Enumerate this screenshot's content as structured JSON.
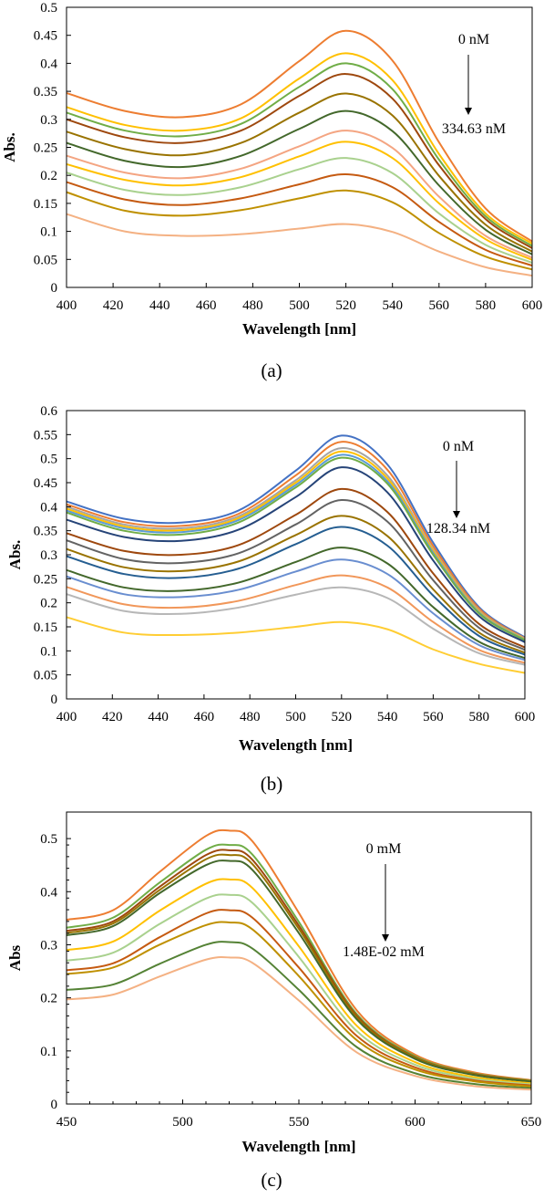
{
  "chart_data": [
    {
      "type": "line",
      "panel_label": "(a)",
      "xlabel": "Wavelength [nm]",
      "ylabel": "Abs.",
      "xlim": [
        400,
        600
      ],
      "ylim": [
        0,
        0.5
      ],
      "x_ticks": [
        "400",
        "420",
        "440",
        "460",
        "480",
        "500",
        "520",
        "540",
        "560",
        "580",
        "600"
      ],
      "y_ticks": [
        "0",
        "0.05",
        "0.1",
        "0.15",
        "0.2",
        "0.25",
        "0.3",
        "0.35",
        "0.4",
        "0.45",
        "0.5"
      ],
      "grid": false,
      "annotation": {
        "top": "0 nM",
        "bottom": "334.63 nM",
        "arrow": "down"
      },
      "x": [
        400,
        425,
        450,
        475,
        500,
        520,
        540,
        560,
        580,
        600
      ],
      "series": [
        {
          "color": "#ED7D31",
          "values": [
            0.347,
            0.315,
            0.304,
            0.327,
            0.404,
            0.458,
            0.405,
            0.259,
            0.141,
            0.082
          ]
        },
        {
          "color": "#FFC000",
          "values": [
            0.322,
            0.29,
            0.28,
            0.302,
            0.373,
            0.418,
            0.37,
            0.238,
            0.132,
            0.078
          ]
        },
        {
          "color": "#70AD47",
          "values": [
            0.312,
            0.28,
            0.27,
            0.292,
            0.358,
            0.4,
            0.354,
            0.228,
            0.127,
            0.074
          ]
        },
        {
          "color": "#9E480E",
          "values": [
            0.3,
            0.268,
            0.258,
            0.28,
            0.342,
            0.381,
            0.337,
            0.218,
            0.122,
            0.07
          ]
        },
        {
          "color": "#997300",
          "values": [
            0.278,
            0.247,
            0.236,
            0.258,
            0.312,
            0.346,
            0.307,
            0.199,
            0.112,
            0.064
          ]
        },
        {
          "color": "#43682B",
          "values": [
            0.258,
            0.226,
            0.215,
            0.235,
            0.283,
            0.315,
            0.279,
            0.182,
            0.103,
            0.059
          ]
        },
        {
          "color": "#F4A582",
          "values": [
            0.235,
            0.205,
            0.195,
            0.212,
            0.252,
            0.28,
            0.249,
            0.162,
            0.092,
            0.053
          ]
        },
        {
          "color": "#FFC000",
          "values": [
            0.22,
            0.192,
            0.182,
            0.197,
            0.234,
            0.26,
            0.231,
            0.15,
            0.086,
            0.049
          ]
        },
        {
          "color": "#A9D18E",
          "values": [
            0.205,
            0.174,
            0.165,
            0.179,
            0.211,
            0.231,
            0.204,
            0.132,
            0.076,
            0.044
          ]
        },
        {
          "color": "#C55A11",
          "values": [
            0.188,
            0.157,
            0.147,
            0.159,
            0.184,
            0.202,
            0.179,
            0.117,
            0.067,
            0.039
          ]
        },
        {
          "color": "#BF9000",
          "values": [
            0.17,
            0.137,
            0.128,
            0.138,
            0.159,
            0.173,
            0.152,
            0.097,
            0.055,
            0.032
          ]
        },
        {
          "color": "#F4B183",
          "values": [
            0.131,
            0.1,
            0.092,
            0.095,
            0.105,
            0.113,
            0.099,
            0.064,
            0.036,
            0.021
          ]
        }
      ]
    },
    {
      "type": "line",
      "panel_label": "(b)",
      "xlabel": "Wavelength [nm]",
      "ylabel": "Abs.",
      "xlim": [
        400,
        600
      ],
      "ylim": [
        0,
        0.6
      ],
      "x_ticks": [
        "400",
        "420",
        "440",
        "460",
        "480",
        "500",
        "520",
        "540",
        "560",
        "580",
        "600"
      ],
      "y_ticks": [
        "0",
        "0.05",
        "0.1",
        "0.15",
        "0.2",
        "0.25",
        "0.3",
        "0.35",
        "0.4",
        "0.45",
        "0.5",
        "0.55",
        "0.6"
      ],
      "grid": false,
      "annotation": {
        "top": "0 nM",
        "bottom": "128.34 nM",
        "arrow": "down"
      },
      "x": [
        400,
        425,
        450,
        475,
        500,
        520,
        540,
        560,
        580,
        600
      ],
      "series": [
        {
          "color": "#4472C4",
          "values": [
            0.411,
            0.375,
            0.367,
            0.392,
            0.475,
            0.548,
            0.488,
            0.325,
            0.191,
            0.128
          ]
        },
        {
          "color": "#ED7D31",
          "values": [
            0.405,
            0.368,
            0.36,
            0.385,
            0.465,
            0.535,
            0.477,
            0.318,
            0.188,
            0.126
          ]
        },
        {
          "color": "#A5A5A5",
          "values": [
            0.4,
            0.363,
            0.355,
            0.38,
            0.455,
            0.522,
            0.465,
            0.311,
            0.184,
            0.125
          ]
        },
        {
          "color": "#FFC000",
          "values": [
            0.396,
            0.359,
            0.351,
            0.376,
            0.45,
            0.515,
            0.459,
            0.308,
            0.182,
            0.124
          ]
        },
        {
          "color": "#5B9BD5",
          "values": [
            0.392,
            0.355,
            0.347,
            0.372,
            0.445,
            0.508,
            0.453,
            0.304,
            0.18,
            0.123
          ]
        },
        {
          "color": "#70AD47",
          "values": [
            0.388,
            0.35,
            0.342,
            0.367,
            0.44,
            0.502,
            0.448,
            0.3,
            0.178,
            0.122
          ]
        },
        {
          "color": "#264478",
          "values": [
            0.373,
            0.337,
            0.329,
            0.352,
            0.42,
            0.482,
            0.43,
            0.288,
            0.172,
            0.118
          ]
        },
        {
          "color": "#9E480E",
          "values": [
            0.345,
            0.308,
            0.3,
            0.32,
            0.383,
            0.437,
            0.389,
            0.261,
            0.156,
            0.107
          ]
        },
        {
          "color": "#636363",
          "values": [
            0.33,
            0.291,
            0.283,
            0.303,
            0.363,
            0.414,
            0.369,
            0.247,
            0.148,
            0.102
          ]
        },
        {
          "color": "#997300",
          "values": [
            0.312,
            0.274,
            0.266,
            0.286,
            0.341,
            0.381,
            0.339,
            0.228,
            0.138,
            0.096
          ]
        },
        {
          "color": "#255E91",
          "values": [
            0.297,
            0.26,
            0.252,
            0.271,
            0.322,
            0.358,
            0.319,
            0.215,
            0.131,
            0.092
          ]
        },
        {
          "color": "#43682B",
          "values": [
            0.268,
            0.232,
            0.225,
            0.242,
            0.285,
            0.315,
            0.282,
            0.191,
            0.119,
            0.085
          ]
        },
        {
          "color": "#698ED0",
          "values": [
            0.255,
            0.218,
            0.212,
            0.227,
            0.265,
            0.29,
            0.26,
            0.178,
            0.112,
            0.081
          ]
        },
        {
          "color": "#F1975A",
          "values": [
            0.233,
            0.197,
            0.19,
            0.204,
            0.237,
            0.257,
            0.232,
            0.16,
            0.102,
            0.075
          ]
        },
        {
          "color": "#B7B7B7",
          "values": [
            0.218,
            0.183,
            0.177,
            0.19,
            0.217,
            0.232,
            0.21,
            0.146,
            0.095,
            0.071
          ]
        },
        {
          "color": "#FFCD33",
          "values": [
            0.17,
            0.138,
            0.133,
            0.138,
            0.15,
            0.16,
            0.145,
            0.103,
            0.073,
            0.054
          ]
        }
      ]
    },
    {
      "type": "line",
      "panel_label": "(c)",
      "xlabel": "Wavelength [nm]",
      "ylabel": "Abs",
      "xlim": [
        450,
        650
      ],
      "ylim": [
        0,
        0.55
      ],
      "x_ticks": [
        "450",
        "500",
        "550",
        "600",
        "650"
      ],
      "y_ticks": [
        "0",
        "0.1",
        "0.2",
        "0.3",
        "0.4",
        "0.5"
      ],
      "grid": false,
      "annotation": {
        "top": "0 mM",
        "bottom": "1.48E-02 mM",
        "arrow": "down"
      },
      "x": [
        450,
        470,
        490,
        510,
        520,
        530,
        550,
        575,
        600,
        625,
        650
      ],
      "series": [
        {
          "color": "#ED7D31",
          "values": [
            0.347,
            0.365,
            0.437,
            0.505,
            0.515,
            0.495,
            0.36,
            0.176,
            0.093,
            0.06,
            0.045
          ]
        },
        {
          "color": "#70AD47",
          "values": [
            0.332,
            0.351,
            0.417,
            0.479,
            0.488,
            0.47,
            0.343,
            0.169,
            0.09,
            0.058,
            0.044
          ]
        },
        {
          "color": "#9E480E",
          "values": [
            0.326,
            0.344,
            0.409,
            0.469,
            0.478,
            0.46,
            0.336,
            0.166,
            0.088,
            0.057,
            0.043
          ]
        },
        {
          "color": "#997300",
          "values": [
            0.322,
            0.34,
            0.403,
            0.461,
            0.469,
            0.452,
            0.33,
            0.163,
            0.087,
            0.056,
            0.043
          ]
        },
        {
          "color": "#43682B",
          "values": [
            0.318,
            0.335,
            0.397,
            0.45,
            0.458,
            0.441,
            0.322,
            0.159,
            0.085,
            0.055,
            0.042
          ]
        },
        {
          "color": "#FFC000",
          "values": [
            0.29,
            0.306,
            0.364,
            0.415,
            0.423,
            0.407,
            0.297,
            0.147,
            0.079,
            0.051,
            0.039
          ]
        },
        {
          "color": "#A9D18E",
          "values": [
            0.27,
            0.285,
            0.339,
            0.387,
            0.394,
            0.379,
            0.277,
            0.137,
            0.074,
            0.048,
            0.037
          ]
        },
        {
          "color": "#C55A11",
          "values": [
            0.252,
            0.265,
            0.314,
            0.359,
            0.365,
            0.351,
            0.257,
            0.128,
            0.069,
            0.045,
            0.035
          ]
        },
        {
          "color": "#BF9000",
          "values": [
            0.245,
            0.257,
            0.3,
            0.337,
            0.342,
            0.329,
            0.241,
            0.12,
            0.065,
            0.043,
            0.033
          ]
        },
        {
          "color": "#548235",
          "values": [
            0.215,
            0.225,
            0.264,
            0.3,
            0.305,
            0.293,
            0.215,
            0.107,
            0.058,
            0.038,
            0.03
          ]
        },
        {
          "color": "#F4B183",
          "values": [
            0.197,
            0.206,
            0.24,
            0.272,
            0.276,
            0.266,
            0.195,
            0.097,
            0.053,
            0.034,
            0.027
          ]
        }
      ]
    }
  ]
}
